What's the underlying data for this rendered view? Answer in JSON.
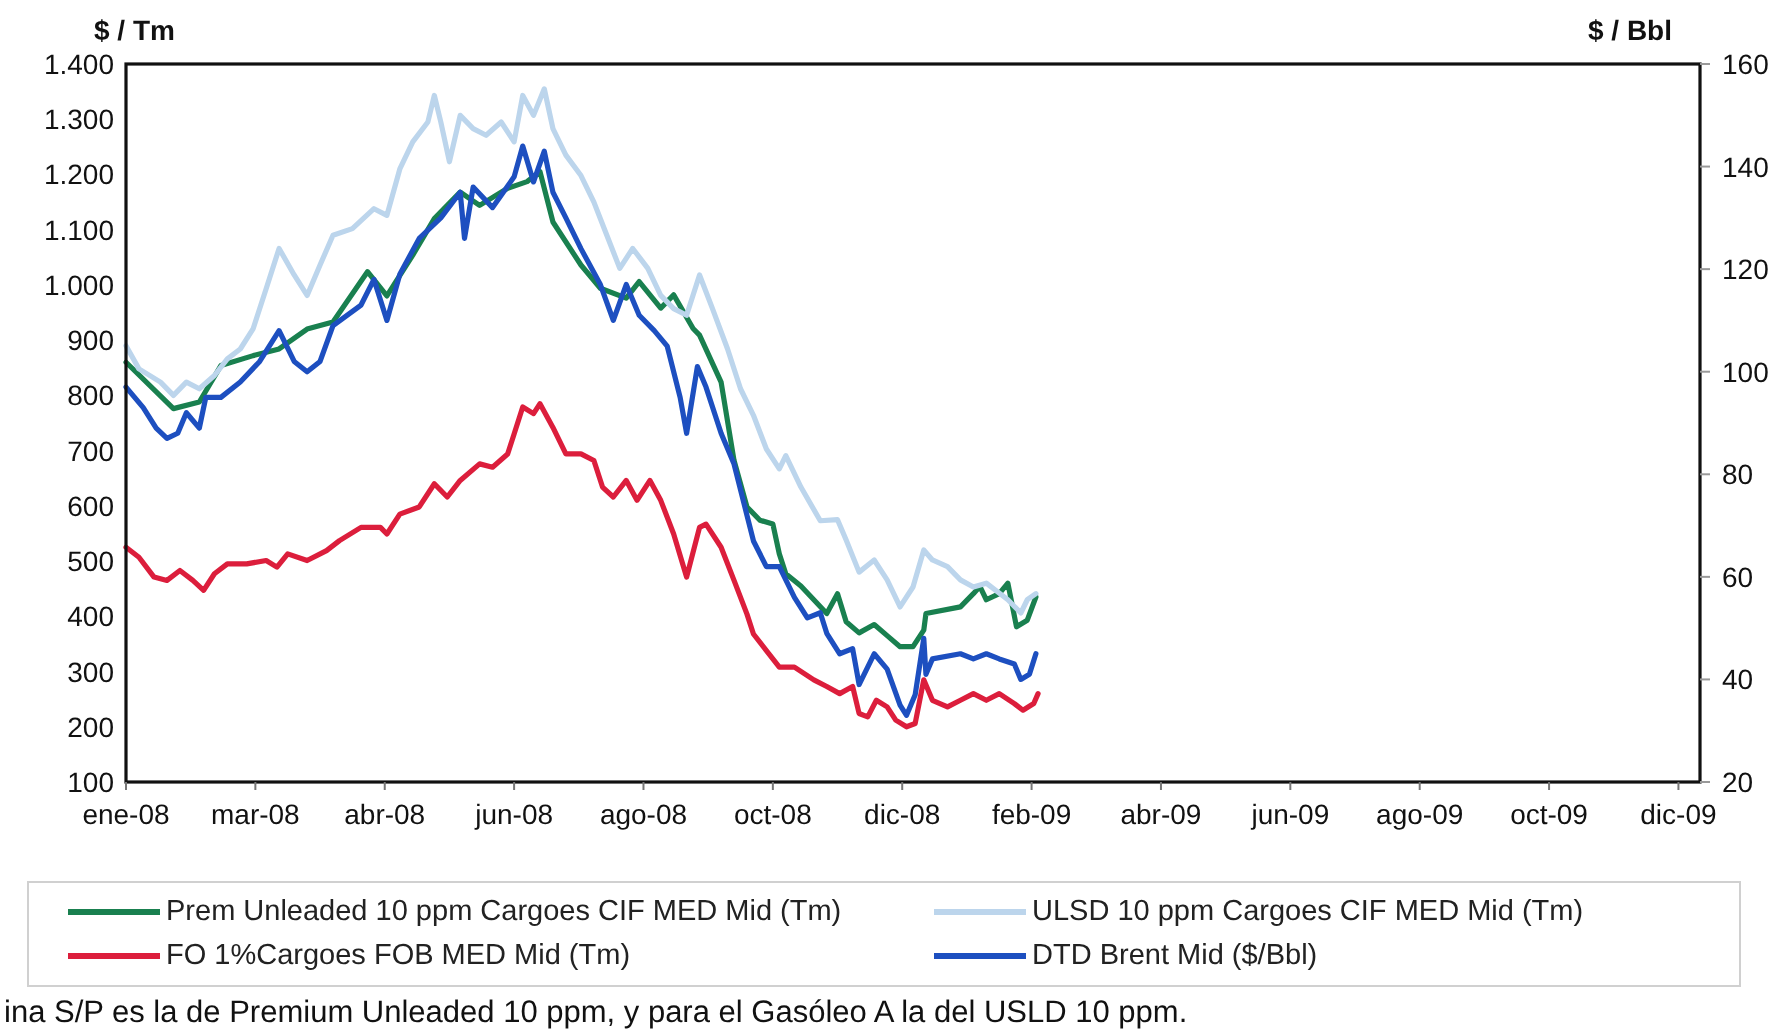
{
  "chart_data": {
    "type": "line",
    "ylabel": "$ / Tm",
    "y2label": "$ / Bbl",
    "xlim": [
      "2008-01-01",
      "2009-12-31"
    ],
    "xticks": [
      {
        "value": "2008-01-01",
        "label": "ene-08"
      },
      {
        "value": "2008-03-01",
        "label": "mar-08"
      },
      {
        "value": "2008-04-30",
        "label": "abr-08"
      },
      {
        "value": "2008-06-29",
        "label": "jun-08"
      },
      {
        "value": "2008-08-28",
        "label": "ago-08"
      },
      {
        "value": "2008-10-27",
        "label": "oct-08"
      },
      {
        "value": "2008-12-26",
        "label": "dic-08"
      },
      {
        "value": "2009-02-24",
        "label": "feb-09"
      },
      {
        "value": "2009-04-25",
        "label": "abr-09"
      },
      {
        "value": "2009-06-24",
        "label": "jun-09"
      },
      {
        "value": "2009-08-23",
        "label": "ago-09"
      },
      {
        "value": "2009-10-22",
        "label": "oct-09"
      },
      {
        "value": "2009-12-21",
        "label": "dic-09"
      }
    ],
    "ylim": [
      100,
      1400
    ],
    "yticks": [
      100,
      200,
      300,
      400,
      500,
      600,
      700,
      800,
      900,
      {
        "value": 1000,
        "label": "1.000"
      },
      {
        "value": 1100,
        "label": "1.100"
      },
      {
        "value": 1200,
        "label": "1.200"
      },
      {
        "value": 1300,
        "label": "1.300"
      },
      {
        "value": 1400,
        "label": "1.400"
      }
    ],
    "y2lim": [
      20,
      160
    ],
    "y2ticks": [
      20,
      40,
      60,
      80,
      100,
      120,
      140,
      160
    ],
    "legend": "bottom",
    "series": [
      {
        "name": "Prem Unleaded 10 ppm Cargoes CIF MED Mid (Tm)",
        "color": "#19804f",
        "x": [
          "2008-01-01",
          "2008-01-23",
          "2008-02-04",
          "2008-02-14",
          "2008-02-29",
          "2008-03-12",
          "2008-03-25",
          "2008-04-06",
          "2008-04-22",
          "2008-05-01",
          "2008-05-13",
          "2008-05-23",
          "2008-06-04",
          "2008-06-13",
          "2008-06-26",
          "2008-07-05",
          "2008-07-11",
          "2008-07-17",
          "2008-07-30",
          "2008-08-08",
          "2008-08-20",
          "2008-08-26",
          "2008-09-05",
          "2008-09-11",
          "2008-09-20",
          "2008-09-23",
          "2008-10-03",
          "2008-10-09",
          "2008-10-15",
          "2008-10-21",
          "2008-10-27",
          "2008-10-30",
          "2008-11-02",
          "2008-11-09",
          "2008-11-15",
          "2008-11-21",
          "2008-11-26",
          "2008-11-30",
          "2008-12-06",
          "2008-12-13",
          "2008-12-19",
          "2008-12-25",
          "2008-12-31",
          "2009-01-05",
          "2009-01-06",
          "2009-01-22",
          "2009-01-28",
          "2009-01-31",
          "2009-02-03",
          "2009-02-09",
          "2009-02-13",
          "2009-02-17",
          "2009-02-22",
          "2009-02-26"
        ],
        "values": [
          860,
          776,
          788,
          854,
          872,
          884,
          920,
          933,
          1024,
          980,
          1054,
          1120,
          1168,
          1144,
          1175,
          1187,
          1205,
          1114,
          1036,
          994,
          976,
          1006,
          958,
          982,
          921,
          909,
          824,
          682,
          598,
          574,
          567,
          513,
          477,
          455,
          430,
          405,
          441,
          390,
          370,
          385,
          365,
          345,
          345,
          375,
          405,
          417,
          441,
          454,
          430,
          441,
          460,
          381,
          393,
          435
        ]
      },
      {
        "name": "ULSD 10 ppm Cargoes CIF MED Mid (Tm)",
        "color": "#bcd5ec",
        "x": [
          "2008-01-01",
          "2008-01-07",
          "2008-01-17",
          "2008-01-23",
          "2008-01-29",
          "2008-02-04",
          "2008-02-11",
          "2008-02-17",
          "2008-02-23",
          "2008-02-29",
          "2008-03-06",
          "2008-03-12",
          "2008-03-19",
          "2008-03-25",
          "2008-03-31",
          "2008-04-06",
          "2008-04-15",
          "2008-04-25",
          "2008-05-01",
          "2008-05-07",
          "2008-05-13",
          "2008-05-20",
          "2008-05-23",
          "2008-05-26",
          "2008-05-30",
          "2008-06-04",
          "2008-06-10",
          "2008-06-16",
          "2008-06-23",
          "2008-06-29",
          "2008-07-03",
          "2008-07-08",
          "2008-07-13",
          "2008-07-17",
          "2008-07-23",
          "2008-07-30",
          "2008-08-05",
          "2008-08-11",
          "2008-08-17",
          "2008-08-23",
          "2008-08-30",
          "2008-09-05",
          "2008-09-11",
          "2008-09-17",
          "2008-09-23",
          "2008-09-29",
          "2008-10-06",
          "2008-10-12",
          "2008-10-18",
          "2008-10-24",
          "2008-10-30",
          "2008-11-02",
          "2008-11-09",
          "2008-11-18",
          "2008-11-26",
          "2008-11-30",
          "2008-12-06",
          "2008-12-13",
          "2008-12-19",
          "2008-12-25",
          "2008-12-31",
          "2009-01-05",
          "2009-01-09",
          "2009-01-16",
          "2009-01-22",
          "2009-01-28",
          "2009-02-03",
          "2009-02-13",
          "2009-02-19",
          "2009-02-22",
          "2009-02-26"
        ],
        "values": [
          890,
          848,
          824,
          800,
          824,
          812,
          836,
          866,
          884,
          921,
          993,
          1066,
          1018,
          981,
          1036,
          1090,
          1102,
          1138,
          1126,
          1210,
          1259,
          1295,
          1343,
          1295,
          1223,
          1307,
          1283,
          1271,
          1295,
          1259,
          1343,
          1307,
          1355,
          1283,
          1235,
          1198,
          1150,
          1090,
          1030,
          1066,
          1030,
          981,
          957,
          945,
          1018,
          957,
          884,
          812,
          764,
          703,
          667,
          691,
          634,
          573,
          575,
          538,
          480,
          502,
          466,
          417,
          453,
          520,
          502,
          490,
          466,
          453,
          460,
          430,
          406,
          430,
          441
        ]
      },
      {
        "name": "FO 1%Cargoes FOB MED Mid (Tm)",
        "color": "#dc1e3c",
        "x": [
          "2008-01-01",
          "2008-01-07",
          "2008-01-14",
          "2008-01-20",
          "2008-01-26",
          "2008-02-01",
          "2008-02-06",
          "2008-02-11",
          "2008-02-17",
          "2008-02-26",
          "2008-03-06",
          "2008-03-11",
          "2008-03-16",
          "2008-03-25",
          "2008-04-03",
          "2008-04-09",
          "2008-04-19",
          "2008-04-28",
          "2008-05-01",
          "2008-05-07",
          "2008-05-16",
          "2008-05-23",
          "2008-05-29",
          "2008-06-04",
          "2008-06-13",
          "2008-06-19",
          "2008-06-26",
          "2008-06-29",
          "2008-07-03",
          "2008-07-08",
          "2008-07-11",
          "2008-07-17",
          "2008-07-23",
          "2008-07-30",
          "2008-08-05",
          "2008-08-09",
          "2008-08-14",
          "2008-08-20",
          "2008-08-25",
          "2008-08-31",
          "2008-09-05",
          "2008-09-11",
          "2008-09-17",
          "2008-09-23",
          "2008-09-26",
          "2008-10-03",
          "2008-10-09",
          "2008-10-15",
          "2008-10-18",
          "2008-10-24",
          "2008-10-30",
          "2008-11-06",
          "2008-11-15",
          "2008-11-21",
          "2008-11-27",
          "2008-12-03",
          "2008-12-06",
          "2008-12-10",
          "2008-12-14",
          "2008-12-19",
          "2008-12-23",
          "2008-12-28",
          "2009-01-01",
          "2009-01-05",
          "2009-01-09",
          "2009-01-16",
          "2009-01-22",
          "2009-01-28",
          "2009-02-03",
          "2009-02-09",
          "2009-02-16",
          "2009-02-20",
          "2009-02-25",
          "2009-02-27"
        ],
        "values": [
          525,
          507,
          471,
          465,
          483,
          465,
          447,
          477,
          495,
          495,
          501,
          489,
          513,
          501,
          519,
          537,
          561,
          561,
          549,
          585,
          598,
          640,
          616,
          646,
          676,
          670,
          694,
          730,
          779,
          767,
          785,
          742,
          694,
          694,
          682,
          634,
          616,
          646,
          610,
          646,
          610,
          549,
          471,
          561,
          567,
          525,
          465,
          404,
          368,
          338,
          308,
          308,
          285,
          273,
          260,
          273,
          224,
          218,
          248,
          236,
          212,
          200,
          206,
          285,
          248,
          236,
          248,
          260,
          248,
          260,
          242,
          230,
          242,
          260
        ]
      },
      {
        "name": "DTD Brent Mid ($/Bbl)",
        "color": "#1d4fc0",
        "axis": "y2",
        "x": [
          "2008-01-01",
          "2008-01-09",
          "2008-01-15",
          "2008-01-20",
          "2008-01-25",
          "2008-01-29",
          "2008-02-04",
          "2008-02-07",
          "2008-02-14",
          "2008-02-23",
          "2008-03-03",
          "2008-03-12",
          "2008-03-19",
          "2008-03-25",
          "2008-03-31",
          "2008-04-06",
          "2008-04-19",
          "2008-04-25",
          "2008-05-01",
          "2008-05-07",
          "2008-05-16",
          "2008-05-26",
          "2008-06-04",
          "2008-06-06",
          "2008-06-10",
          "2008-06-19",
          "2008-06-29",
          "2008-07-03",
          "2008-07-08",
          "2008-07-13",
          "2008-07-17",
          "2008-07-23",
          "2008-07-30",
          "2008-08-08",
          "2008-08-14",
          "2008-08-20",
          "2008-08-26",
          "2008-09-02",
          "2008-09-08",
          "2008-09-14",
          "2008-09-17",
          "2008-09-22",
          "2008-09-26",
          "2008-10-03",
          "2008-10-09",
          "2008-10-15",
          "2008-10-18",
          "2008-10-24",
          "2008-10-30",
          "2008-11-06",
          "2008-11-12",
          "2008-11-18",
          "2008-11-21",
          "2008-11-27",
          "2008-12-03",
          "2008-12-06",
          "2008-12-13",
          "2008-12-19",
          "2008-12-25",
          "2008-12-28",
          "2009-01-01",
          "2009-01-05",
          "2009-01-06",
          "2009-01-09",
          "2009-01-22",
          "2009-01-28",
          "2009-02-03",
          "2009-02-09",
          "2009-02-16",
          "2009-02-19",
          "2009-02-23",
          "2009-02-26"
        ],
        "values": [
          97,
          93,
          89,
          87,
          88,
          92,
          89,
          95,
          95,
          98,
          102,
          108,
          102,
          100,
          102,
          109,
          113,
          118,
          110,
          119,
          126,
          130,
          135,
          126,
          136,
          132,
          138,
          144,
          137,
          143,
          135,
          130,
          124,
          117,
          110,
          117,
          111,
          108,
          105,
          95,
          88,
          101,
          97,
          88,
          82,
          72,
          67,
          62,
          62,
          56,
          52,
          53,
          49,
          45,
          46,
          39,
          45,
          42,
          35,
          33,
          37,
          48,
          41,
          44,
          45,
          44,
          45,
          44,
          43,
          40,
          41,
          45
        ]
      }
    ],
    "annotations": [
      "ina S/P es la de Premium Unleaded 10 ppm, y para el Gasóleo A la del USLD 10 ppm."
    ]
  }
}
